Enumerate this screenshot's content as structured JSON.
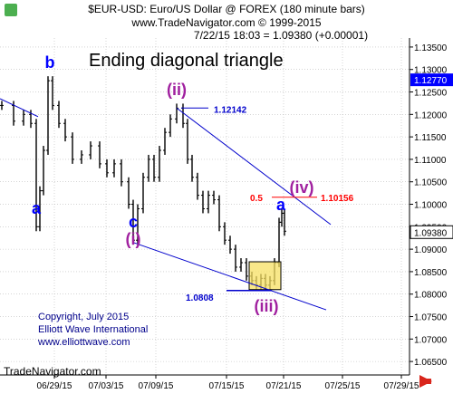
{
  "header": {
    "line1": "$EUR-USD:  Euro/US Dollar @ FOREX  (180 minute bars)",
    "line2": "www.TradeNavigator.com © 1999-2015",
    "quote": "7/22/15 18:03 = 1.09380 (+0.00001)"
  },
  "title": "Ending diagonal triangle",
  "copyright": [
    "Copyright, July 2015",
    "Elliott Wave International",
    "www.elliottwave.com"
  ],
  "footer": "TradeNavigator.com",
  "colors": {
    "wave_labels_blue": "#0000ff",
    "wave_labels_purple": "#a0209f",
    "fib_red": "#ff0000",
    "box_fill": "#f7e063",
    "current_price_bg": "#0000ff"
  },
  "chart_data": {
    "type": "bar",
    "subtype": "ohlc-price-bars",
    "x_ticks": [
      "06/29/15",
      "07/03/15",
      "07/09/15",
      "07/15/15",
      "07/21/15",
      "07/25/15",
      "07/29/15"
    ],
    "y_ticks": [
      "1.13500",
      "1.13000",
      "1.12500",
      "1.12000",
      "1.11500",
      "1.11000",
      "1.10500",
      "1.10000",
      "1.09500",
      "1.09000",
      "1.08500",
      "1.08000",
      "1.07500",
      "1.07000",
      "1.06500"
    ],
    "ylim": [
      1.062,
      1.137
    ],
    "current_price": "1.12770",
    "last_price": "1.09380",
    "wave_labels": [
      {
        "label": "a",
        "price": 1.095,
        "color": "blue"
      },
      {
        "label": "b",
        "price": 1.1275,
        "color": "blue"
      },
      {
        "label": "c",
        "price": 1.092,
        "color": "blue"
      },
      {
        "label": "(i)",
        "price": 1.092,
        "color": "purple"
      },
      {
        "label": "(ii)",
        "price": 1.1214,
        "color": "purple"
      },
      {
        "label": "(iii)",
        "price": 1.0808,
        "color": "purple"
      },
      {
        "label": "(iv)",
        "price": 1.1016,
        "color": "purple"
      },
      {
        "label": "a",
        "price": 1.099,
        "color": "blue"
      }
    ],
    "annotations": [
      {
        "text": "1.12142",
        "price": 1.12142
      },
      {
        "text": "1.0808",
        "price": 1.0808
      },
      {
        "text": "0.5",
        "price": 1.10156
      },
      {
        "text": "1.10156",
        "price": 1.10156
      }
    ]
  }
}
